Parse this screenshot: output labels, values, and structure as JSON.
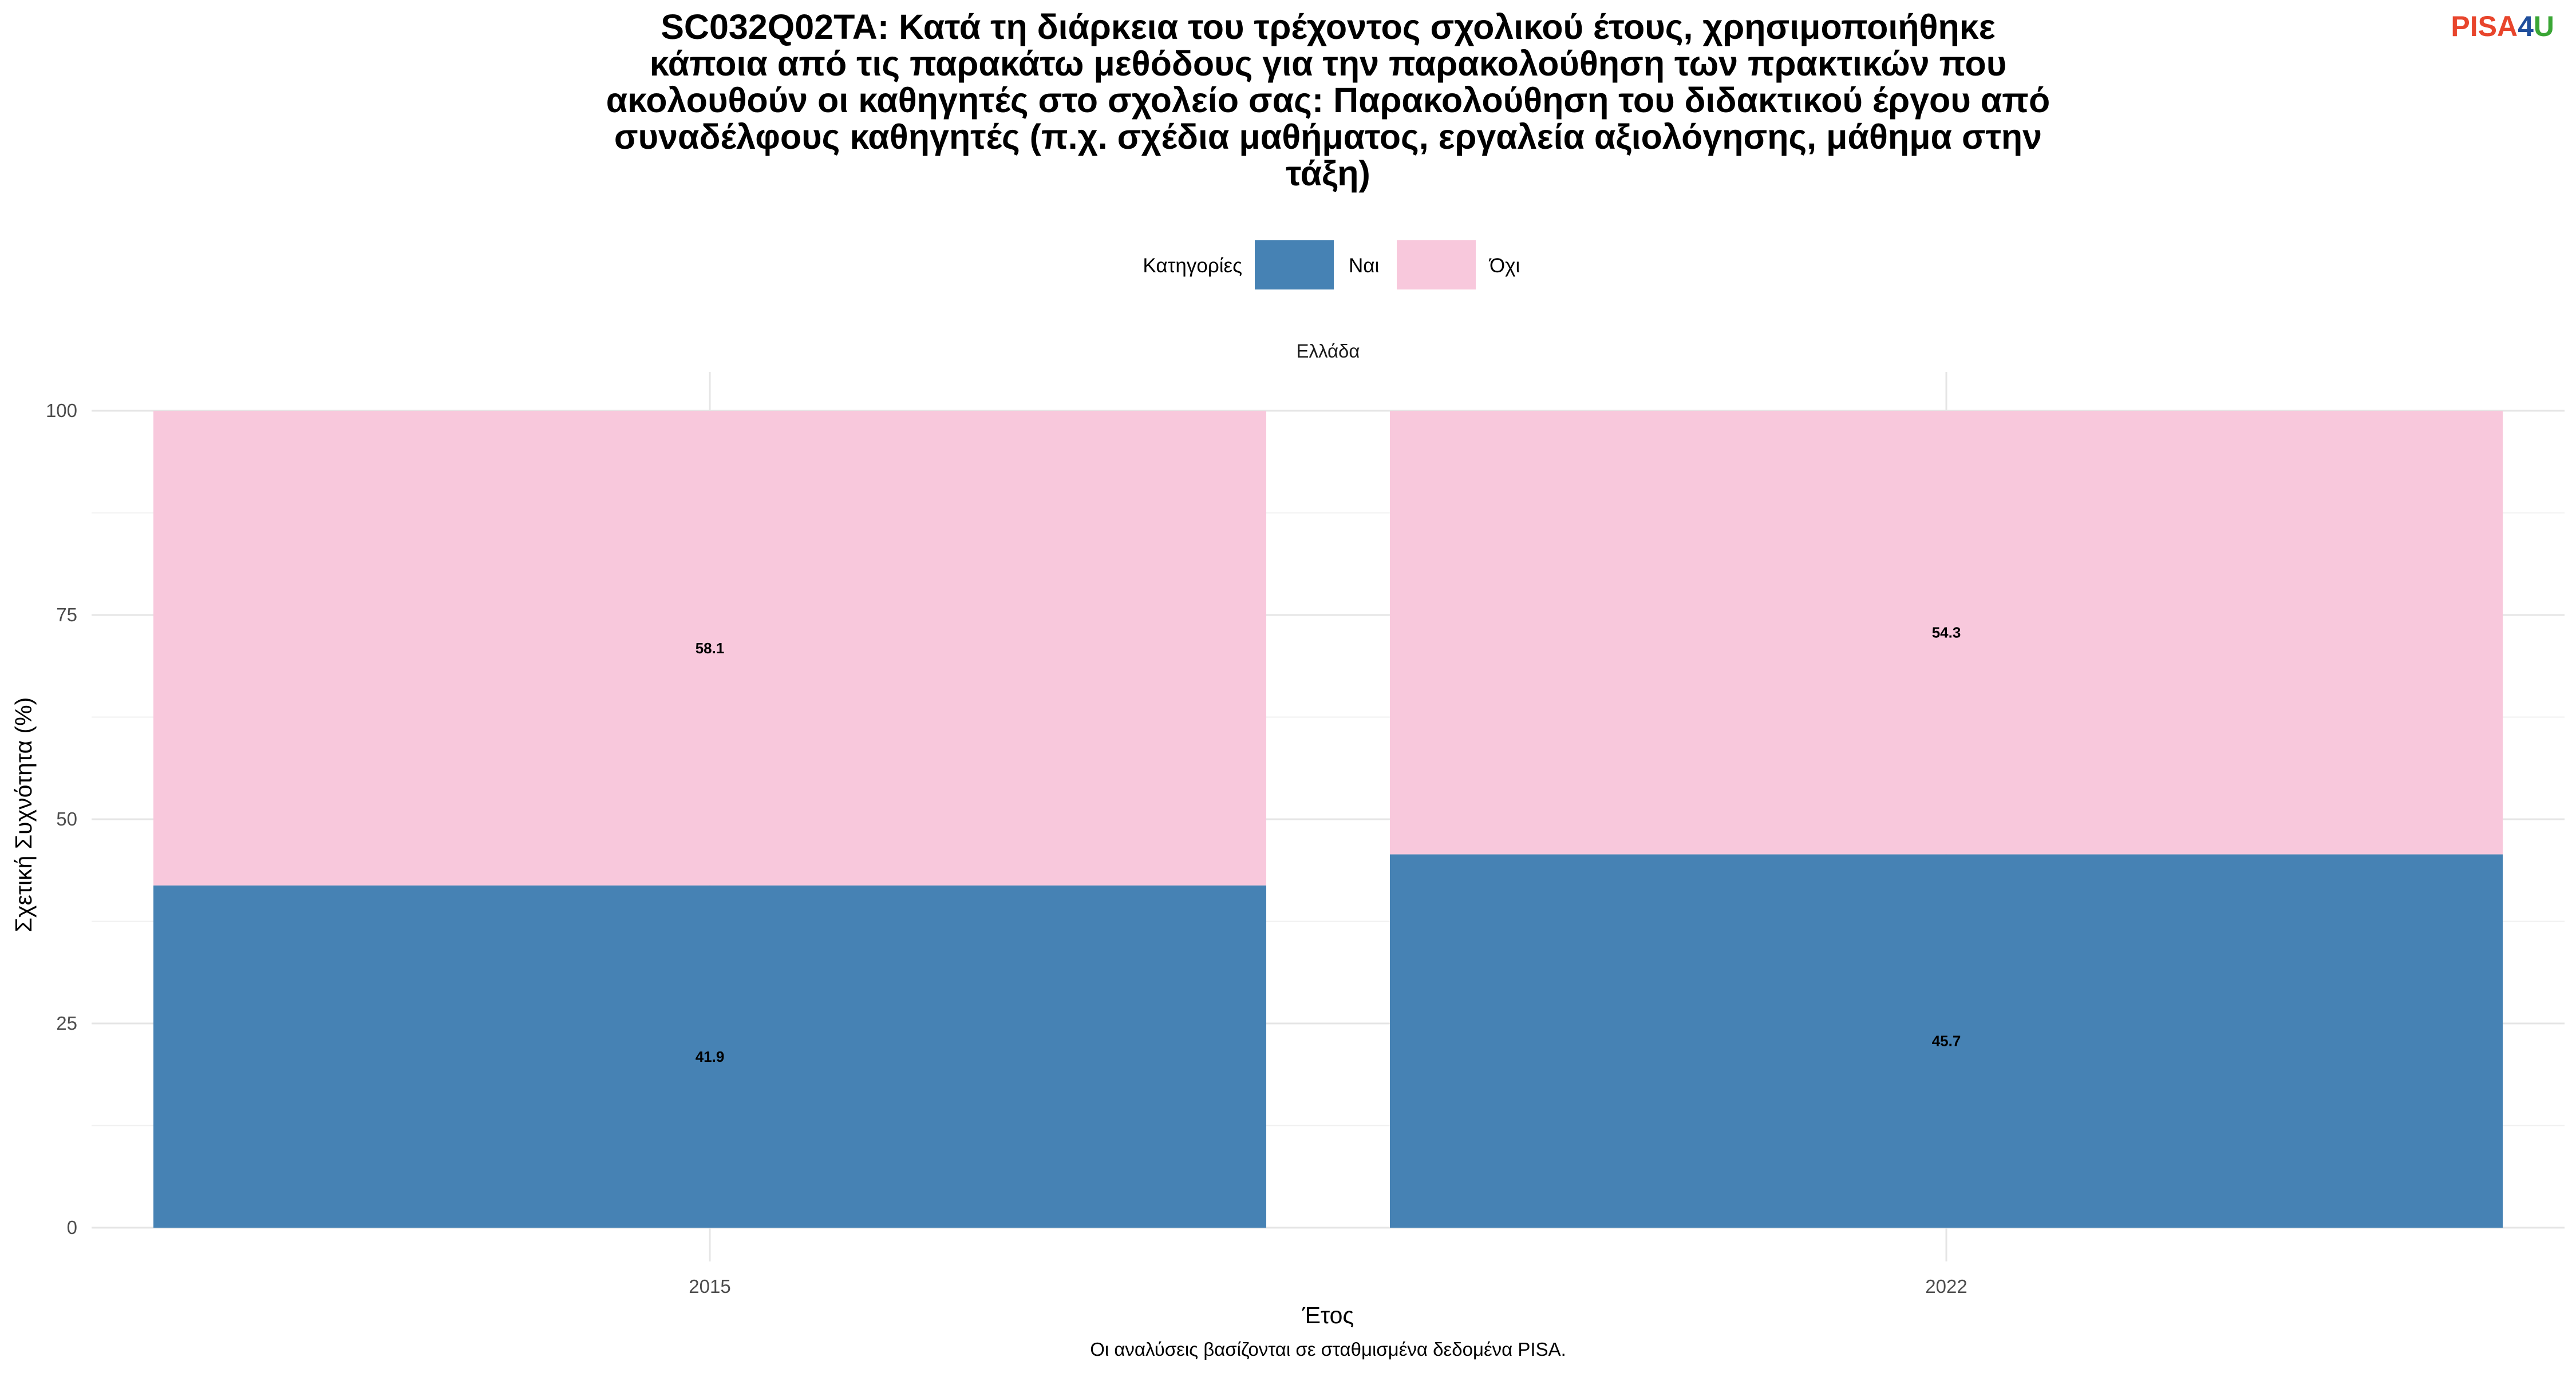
{
  "logo": {
    "part1": "PISA",
    "part2": "4",
    "part3": "U",
    "color1": "#e8452c",
    "color2": "#1f4e9c",
    "color3": "#3aa635"
  },
  "chart_data": {
    "type": "bar",
    "stacked": true,
    "title_lines": [
      "SC032Q02TA: Κατά τη διάρκεια του τρέχοντος σχολικού έτους, χρησιμοποιήθηκε",
      "κάποια από τις παρακάτω μεθόδους για την παρακολούθηση των πρακτικών που",
      "ακολουθούν οι καθηγητές στο σχολείο σας: Παρακολούθηση του διδακτικού έργου από",
      "συναδέλφους καθηγητές (π.χ. σχέδια μαθήματος, εργαλεία αξιολόγησης, μάθημα στην",
      "τάξη)"
    ],
    "legend_title": "Κατηγορίες",
    "legend_position": "top",
    "facet": "Ελλάδα",
    "categories": [
      "2015",
      "2022"
    ],
    "series": [
      {
        "name": "Ναι",
        "values": [
          41.9,
          45.7
        ],
        "labels": [
          "41.9",
          "45.7"
        ],
        "color": "#4682b4"
      },
      {
        "name": "Όχι",
        "values": [
          58.1,
          54.3
        ],
        "labels": [
          "58.1",
          "54.3"
        ],
        "color": "#f8c8dc"
      }
    ],
    "xlabel": "Έτος",
    "ylabel": "Σχετική Συχνότητα (%)",
    "ylim": [
      0,
      100
    ],
    "yticks": [
      0,
      25,
      50,
      75,
      100
    ],
    "grid": true,
    "caption": "Οι αναλύσεις βασίζονται σε σταθμισμένα δεδομένα PISA."
  }
}
